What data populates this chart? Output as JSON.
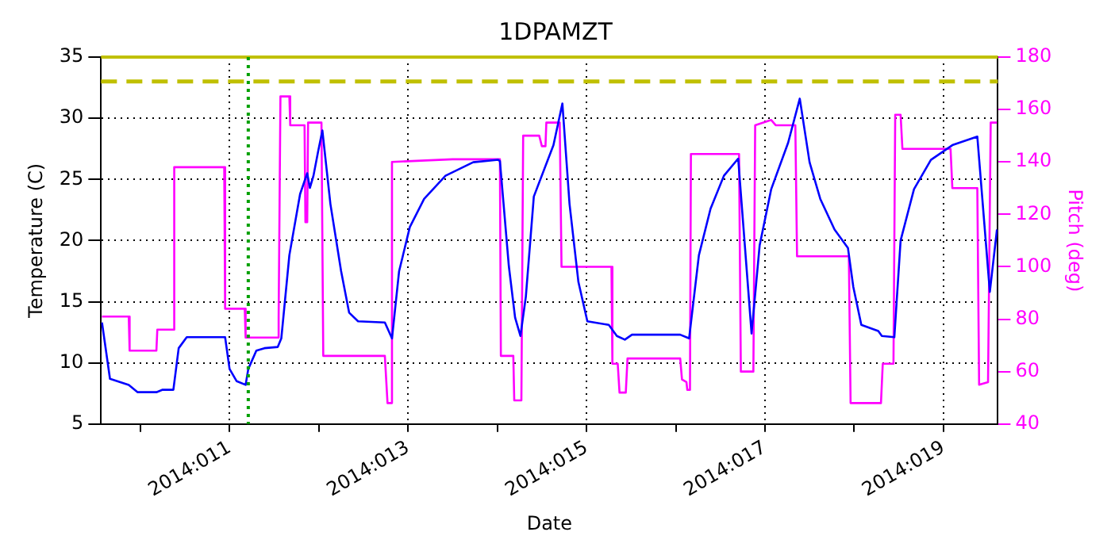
{
  "chart_data": {
    "type": "line",
    "title": "1DPAMZT",
    "xlabel": "Date",
    "ylabel": "Temperature (C)",
    "y2label": "Pitch (deg)",
    "xlim": [
      "2014-01-09T13:26",
      "2014-01-19T14:38"
    ],
    "xticks": [
      {
        "value": "2014-01-10",
        "label": null
      },
      {
        "value": "2014-01-11",
        "label": "2014:011"
      },
      {
        "value": "2014-01-12",
        "label": null
      },
      {
        "value": "2014-01-13",
        "label": "2014:013"
      },
      {
        "value": "2014-01-14",
        "label": null
      },
      {
        "value": "2014-01-15",
        "label": "2014:015"
      },
      {
        "value": "2014-01-16",
        "label": null
      },
      {
        "value": "2014-01-17",
        "label": "2014:017"
      },
      {
        "value": "2014-01-18",
        "label": null
      },
      {
        "value": "2014-01-19",
        "label": "2014:019"
      }
    ],
    "ylim": [
      5,
      35
    ],
    "yticks": [
      5,
      10,
      15,
      20,
      25,
      30,
      35
    ],
    "y2lim": [
      40,
      180
    ],
    "y2ticks": [
      40,
      60,
      80,
      100,
      120,
      140,
      160,
      180
    ],
    "grid": true,
    "marker": "none",
    "line_style": "solid",
    "ref_lines": [
      {
        "axis": "y",
        "value": 33,
        "color": "#c0c000",
        "line_style": "dashed"
      },
      {
        "axis": "y",
        "value": 35,
        "color": "#c0c000",
        "line_style": "solid"
      },
      {
        "axis": "x",
        "value": "2014-01-11T05:02",
        "color": "#00a000",
        "line_style": "dotted"
      }
    ],
    "series": [
      {
        "color": "#0000ff",
        "x": [
          "2014-01-09T13:41",
          "2014-01-09T15:50",
          "2014-01-09T20:53",
          "2014-01-09T23:17",
          "2014-01-10T04:19",
          "2014-01-10T06:00",
          "2014-01-10T08:53",
          "2014-01-10T10:19",
          "2014-01-10T12:29",
          "2014-01-10T22:48",
          "2014-01-11T00:00",
          "2014-01-11T01:55",
          "2014-01-11T04:19",
          "2014-01-11T05:02",
          "2014-01-11T07:12",
          "2014-01-11T09:22",
          "2014-01-11T12:58",
          "2014-01-11T13:55",
          "2014-01-11T16:05",
          "2014-01-11T18:58",
          "2014-01-11T20:53",
          "2014-01-11T21:36",
          "2014-01-11T22:34",
          "2014-01-11T23:46",
          "2014-01-12T00:58",
          "2014-01-12T03:07",
          "2014-01-12T06:00",
          "2014-01-12T08:10",
          "2014-01-12T10:34",
          "2014-01-12T17:46",
          "2014-01-12T19:41",
          "2014-01-12T21:36",
          "2014-01-13T00:29",
          "2014-01-13T04:19",
          "2014-01-13T10:05",
          "2014-01-13T17:31",
          "2014-01-14T00:14",
          "2014-01-14T00:43",
          "2014-01-14T03:07",
          "2014-01-14T04:48",
          "2014-01-14T06:14",
          "2014-01-14T07:41",
          "2014-01-14T09:50",
          "2014-01-14T15:07",
          "2014-01-14T17:31",
          "2014-01-14T19:26",
          "2014-01-14T21:50",
          "2014-01-15T00:14",
          "2014-01-15T06:00",
          "2014-01-15T08:10",
          "2014-01-15T10:19",
          "2014-01-15T12:14",
          "2014-01-16T01:12",
          "2014-01-16T03:36",
          "2014-01-16T06:14",
          "2014-01-16T09:22",
          "2014-01-16T12:58",
          "2014-01-16T16:48",
          "2014-01-16T20:24",
          "2014-01-16T22:34",
          "2014-01-17T01:41",
          "2014-01-17T06:14",
          "2014-01-17T09:22",
          "2014-01-17T12:00",
          "2014-01-17T14:53",
          "2014-01-17T18:43",
          "2014-01-17T22:19",
          "2014-01-17T23:46",
          "2014-01-18T01:55",
          "2014-01-18T06:29",
          "2014-01-18T07:26",
          "2014-01-18T10:48",
          "2014-01-18T12:29",
          "2014-01-18T16:05",
          "2014-01-18T20:38",
          "2014-01-19T02:24",
          "2014-01-19T09:07",
          "2014-01-19T12:29",
          "2014-01-19T14:24"
        ],
        "values": [
          13.3,
          8.7,
          8.2,
          7.6,
          7.6,
          7.8,
          7.8,
          11.2,
          12.1,
          12.1,
          9.5,
          8.5,
          8.2,
          9.5,
          11.0,
          11.2,
          11.3,
          12.0,
          18.8,
          23.8,
          25.5,
          24.3,
          25.3,
          27.2,
          29.0,
          23.0,
          17.5,
          14.1,
          13.4,
          13.3,
          12.0,
          17.5,
          21.1,
          23.4,
          25.3,
          26.4,
          26.6,
          26.5,
          17.9,
          13.7,
          12.2,
          15.4,
          23.6,
          27.8,
          31.2,
          23.0,
          16.6,
          13.4,
          13.1,
          12.2,
          11.9,
          12.3,
          12.3,
          12.0,
          18.8,
          22.6,
          25.3,
          26.7,
          12.4,
          19.6,
          24.2,
          28.0,
          31.6,
          26.4,
          23.4,
          20.9,
          19.4,
          16.2,
          13.1,
          12.6,
          12.2,
          12.1,
          20.0,
          24.2,
          26.6,
          27.8,
          28.5,
          15.8,
          20.9
        ]
      },
      {
        "color": "#ff00ff",
        "axis": "y2",
        "x": [
          "2014-01-09T13:41",
          "2014-01-09T20:53",
          "2014-01-09T21:07",
          "2014-01-10T04:19",
          "2014-01-10T04:34",
          "2014-01-10T08:53",
          "2014-01-10T09:07",
          "2014-01-10T22:34",
          "2014-01-10T22:48",
          "2014-01-11T04:05",
          "2014-01-11T04:19",
          "2014-01-11T12:58",
          "2014-01-11T13:12",
          "2014-01-11T13:41",
          "2014-01-11T16:05",
          "2014-01-11T16:19",
          "2014-01-11T20:10",
          "2014-01-11T20:24",
          "2014-01-11T20:53",
          "2014-01-11T21:07",
          "2014-01-12T00:43",
          "2014-01-12T01:12",
          "2014-01-12T17:46",
          "2014-01-12T18:29",
          "2014-01-12T19:26",
          "2014-01-12T19:41",
          "2014-01-13T12:00",
          "2014-01-14T00:43",
          "2014-01-14T00:58",
          "2014-01-14T04:19",
          "2014-01-14T04:34",
          "2014-01-14T06:29",
          "2014-01-14T06:58",
          "2014-01-14T11:17",
          "2014-01-14T12:00",
          "2014-01-14T12:58",
          "2014-01-14T13:12",
          "2014-01-14T16:48",
          "2014-01-14T17:17",
          "2014-01-15T06:43",
          "2014-01-15T06:58",
          "2014-01-15T08:24",
          "2014-01-15T08:53",
          "2014-01-15T10:34",
          "2014-01-15T11:02",
          "2014-01-16T01:12",
          "2014-01-16T01:41",
          "2014-01-16T02:53",
          "2014-01-16T03:07",
          "2014-01-16T03:50",
          "2014-01-16T04:05",
          "2014-01-16T17:02",
          "2014-01-16T17:31",
          "2014-01-16T20:53",
          "2014-01-16T21:22",
          "2014-01-17T01:41",
          "2014-01-17T02:53",
          "2014-01-17T08:10",
          "2014-01-17T08:38",
          "2014-01-17T22:34",
          "2014-01-17T23:02",
          "2014-01-18T07:12",
          "2014-01-18T07:41",
          "2014-01-18T10:34",
          "2014-01-18T11:02",
          "2014-01-18T12:29",
          "2014-01-18T12:58",
          "2014-01-19T01:55",
          "2014-01-19T02:24",
          "2014-01-19T09:07",
          "2014-01-19T09:36",
          "2014-01-19T12:00",
          "2014-01-19T12:43",
          "2014-01-19T14:24"
        ],
        "values": [
          81,
          81,
          68,
          68,
          76,
          76,
          138,
          138,
          84,
          84,
          73,
          73,
          81,
          165,
          165,
          154,
          154,
          117,
          117,
          155,
          155,
          66,
          66,
          48,
          48,
          140,
          141,
          141,
          66,
          66,
          49,
          49,
          150,
          150,
          146,
          146,
          155,
          155,
          100,
          100,
          63,
          63,
          52,
          52,
          65,
          65,
          57,
          56,
          53,
          53,
          143,
          143,
          60,
          60,
          154,
          156,
          154,
          154,
          104,
          104,
          48,
          48,
          63,
          63,
          158,
          158,
          145,
          145,
          130,
          130,
          55,
          56,
          155,
          155
        ]
      }
    ]
  }
}
